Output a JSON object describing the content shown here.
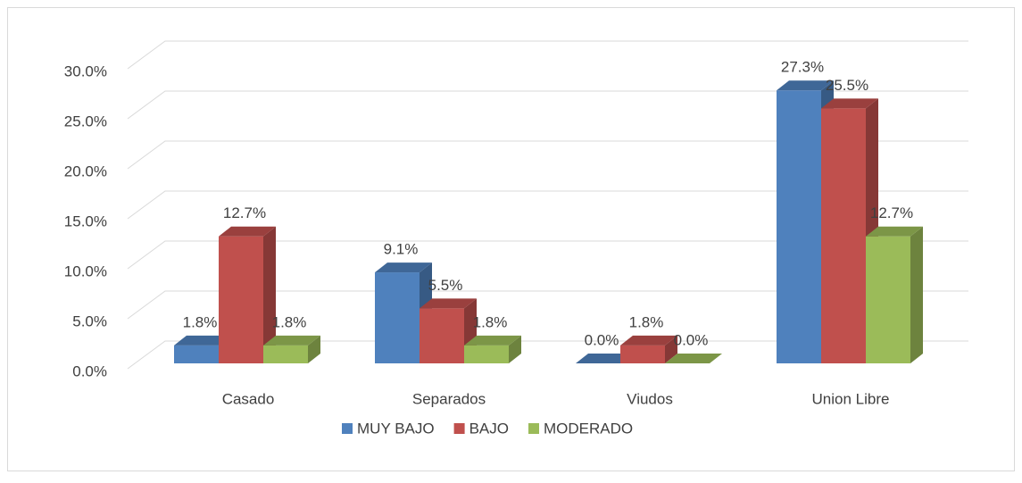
{
  "chart_data": {
    "type": "bar3d",
    "categories": [
      "Casado",
      "Separados",
      "Viudos",
      "Union Libre"
    ],
    "series": [
      {
        "name": "MUY BAJO",
        "color": "#4f81bd",
        "values": [
          1.8,
          9.1,
          0.0,
          27.3
        ],
        "value_labels": [
          "1.8%",
          "9.1%",
          "0.0%",
          "27.3%"
        ]
      },
      {
        "name": "BAJO",
        "color": "#c0504d",
        "values": [
          12.7,
          5.5,
          1.8,
          25.5
        ],
        "value_labels": [
          "12.7%",
          "5.5%",
          "1.8%",
          "25.5%"
        ]
      },
      {
        "name": "MODERADO",
        "color": "#9bbb59",
        "values": [
          1.8,
          1.8,
          0.0,
          12.7
        ],
        "value_labels": [
          "1.8%",
          "1.8%",
          "0.0%",
          "12.7%"
        ]
      }
    ],
    "ylim": [
      0,
      30
    ],
    "yticks": [
      {
        "value": 0,
        "label": "0.0%"
      },
      {
        "value": 5,
        "label": "5.0%"
      },
      {
        "value": 10,
        "label": "10.0%"
      },
      {
        "value": 15,
        "label": "15.0%"
      },
      {
        "value": 20,
        "label": "20.0%"
      },
      {
        "value": 25,
        "label": "25.0%"
      },
      {
        "value": 30,
        "label": "30.0%"
      }
    ],
    "grid": true,
    "legend": "bottom"
  }
}
